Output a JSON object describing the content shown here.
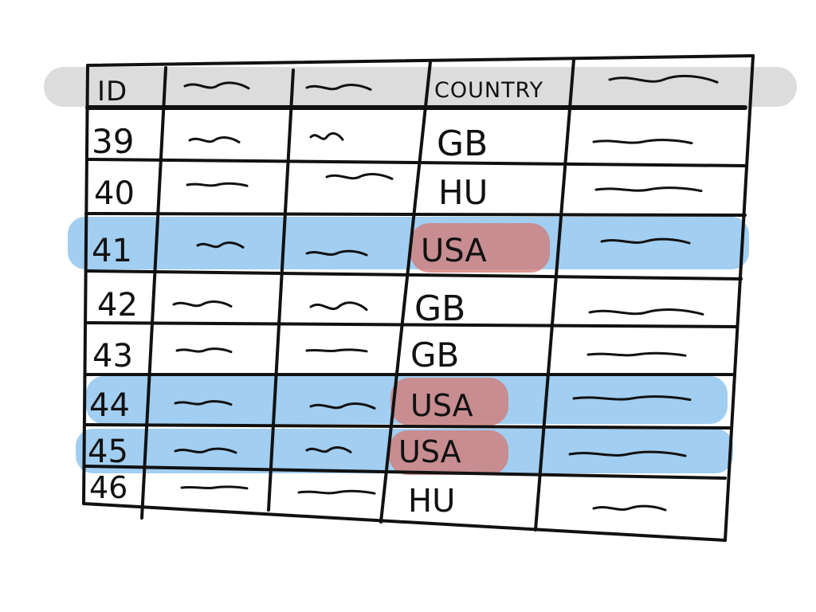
{
  "table": {
    "header": {
      "id": "ID",
      "country": "COUNTRY"
    },
    "rows": [
      {
        "id": "39",
        "country": "GB",
        "row_highlighted": false,
        "country_highlighted": false
      },
      {
        "id": "40",
        "country": "HU",
        "row_highlighted": false,
        "country_highlighted": false
      },
      {
        "id": "41",
        "country": "USA",
        "row_highlighted": true,
        "country_highlighted": true
      },
      {
        "id": "42",
        "country": "GB",
        "row_highlighted": false,
        "country_highlighted": false
      },
      {
        "id": "43",
        "country": "GB",
        "row_highlighted": false,
        "country_highlighted": false
      },
      {
        "id": "44",
        "country": "USA",
        "row_highlighted": true,
        "country_highlighted": true
      },
      {
        "id": "45",
        "country": "USA",
        "row_highlighted": true,
        "country_highlighted": true
      },
      {
        "id": "46",
        "country": "HU",
        "row_highlighted": false,
        "country_highlighted": false
      }
    ]
  },
  "colors": {
    "background": "#ffffff",
    "ink": "#111111",
    "header_shade": "#d6d6d6",
    "row_highlight": "#63ade8",
    "cell_highlight": "#d27d79"
  }
}
